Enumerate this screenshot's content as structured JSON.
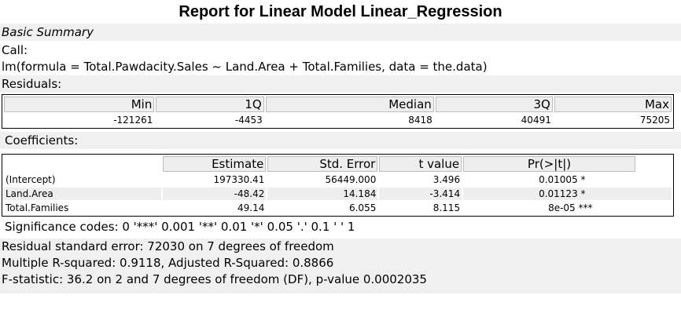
{
  "title": "Report for Linear Model Linear_Regression",
  "basic_summary": "Basic Summary",
  "call": {
    "label": "Call:",
    "formula": "lm(formula = Total.Pawdacity.Sales ~ Land.Area + Total.Families, data = the.data)"
  },
  "residuals": {
    "label": "Residuals:",
    "headers": [
      "Min",
      "1Q",
      "Median",
      "3Q",
      "Max"
    ],
    "values": [
      "-121261",
      "-4453",
      "8418",
      "40491",
      "75205"
    ]
  },
  "coefficients": {
    "label": "Coefficients:",
    "headers": [
      "Estimate",
      "Std. Error",
      "t value",
      "Pr(>|t|)"
    ],
    "rows": [
      {
        "name": "(Intercept)",
        "estimate": "197330.41",
        "std_error": "56449.000",
        "t_value": "3.496",
        "p_value": "0.01005 *"
      },
      {
        "name": "Land.Area",
        "estimate": "-48.42",
        "std_error": "14.184",
        "t_value": "-3.414",
        "p_value": "0.01123 *"
      },
      {
        "name": "Total.Families",
        "estimate": "49.14",
        "std_error": "6.055",
        "t_value": "8.115",
        "p_value": "8e-05 ***"
      }
    ]
  },
  "significance_codes": "Significance codes: 0 '***' 0.001 '**' 0.01 '*' 0.05 '.' 0.1 ' ' 1",
  "summary_stats": [
    "Residual standard error: 72030 on 7 degrees of freedom",
    "Multiple R-squared: 0.9118, Adjusted R-Squared: 0.8866",
    "F-statistic: 36.2 on 2 and 7 degrees of freedom (DF), p-value 0.0002035"
  ]
}
